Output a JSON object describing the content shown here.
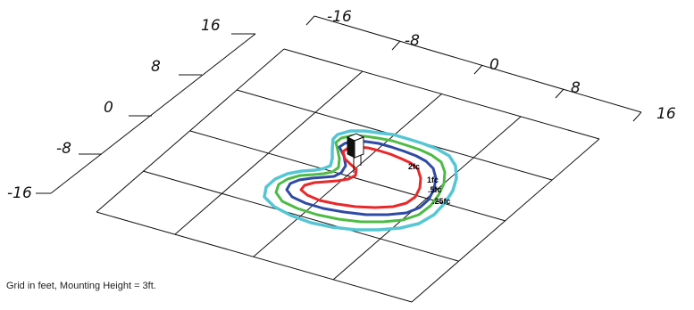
{
  "left_axis": {
    "ticks": [
      "16",
      "8",
      "0",
      "-8",
      "-16"
    ]
  },
  "top_axis": {
    "ticks": [
      "-16",
      "-8",
      "0",
      "8",
      "16"
    ]
  },
  "contours": [
    {
      "label": "2fc",
      "color": "#e8282b"
    },
    {
      "label": "1fc",
      "color": "#2e4aa4"
    },
    {
      "label": ".5fc",
      "color": "#4dbb45"
    },
    {
      "label": ".25fc",
      "color": "#55c6d4"
    }
  ],
  "fixture": {
    "icon": "light-fixture-icon"
  },
  "caption": "Grid in feet, Mounting Height = 3ft."
}
